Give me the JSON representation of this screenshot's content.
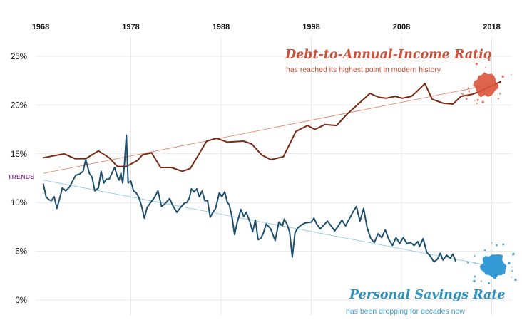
{
  "chart_data": {
    "type": "line",
    "title": "",
    "xlabel": "",
    "ylabel": "",
    "x_ticks": [
      "1968",
      "1978",
      "1988",
      "1998",
      "2008",
      "2018"
    ],
    "y_ticks": [
      "0%",
      "5%",
      "10%",
      "15%",
      "20%",
      "25%"
    ],
    "xlim": [
      1968,
      2021
    ],
    "ylim": [
      0,
      25
    ],
    "grid": true,
    "trends_label": "TRENDS",
    "colors": {
      "debt": "#7a2a14",
      "debt_trend": "#e08a70",
      "savings": "#1d4f6e",
      "savings_trend": "#8ec8e6",
      "debt_splash": "#d9543a",
      "savings_splash": "#1e8fd0",
      "trends_text": "#8a3a8c"
    },
    "series": [
      {
        "name": "Debt-to-Annual-Income Ratio",
        "subtitle": "has reached its highest point in modern history",
        "points": [
          [
            1968.3,
            14.6
          ],
          [
            1970.6,
            15.0
          ],
          [
            1971.8,
            14.5
          ],
          [
            1973.0,
            14.5
          ],
          [
            1974.4,
            15.3
          ],
          [
            1975.6,
            14.6
          ],
          [
            1976.5,
            13.7
          ],
          [
            1977.5,
            13.7
          ],
          [
            1978.7,
            14.3
          ],
          [
            1979.3,
            14.9
          ],
          [
            1980.3,
            15.1
          ],
          [
            1981.3,
            13.6
          ],
          [
            1982.5,
            13.6
          ],
          [
            1983.7,
            13.2
          ],
          [
            1984.6,
            13.5
          ],
          [
            1986.4,
            16.3
          ],
          [
            1987.5,
            16.6
          ],
          [
            1988.7,
            16.2
          ],
          [
            1990.5,
            16.3
          ],
          [
            1991.4,
            16.0
          ],
          [
            1992.5,
            14.9
          ],
          [
            1993.5,
            14.4
          ],
          [
            1994.9,
            14.7
          ],
          [
            1996.3,
            17.3
          ],
          [
            1997.6,
            17.9
          ],
          [
            1998.4,
            17.5
          ],
          [
            1999.5,
            18.0
          ],
          [
            2000.8,
            17.9
          ],
          [
            2002.0,
            19.1
          ],
          [
            2003.8,
            20.6
          ],
          [
            2004.5,
            21.2
          ],
          [
            2005.5,
            20.8
          ],
          [
            2006.3,
            20.7
          ],
          [
            2007.3,
            20.9
          ],
          [
            2008.1,
            20.7
          ],
          [
            2009.1,
            20.9
          ],
          [
            2009.6,
            21.3
          ],
          [
            2010.6,
            22.2
          ],
          [
            2011.4,
            20.6
          ],
          [
            2012.6,
            20.2
          ],
          [
            2013.7,
            20.1
          ],
          [
            2014.6,
            20.9
          ],
          [
            2015.8,
            21.1
          ],
          [
            2016.7,
            21.4
          ],
          [
            2017.8,
            21.9
          ],
          [
            2019.0,
            22.4
          ]
        ],
        "trend": [
          [
            1968.3,
            13.0
          ],
          [
            2019.0,
            22.3
          ]
        ]
      },
      {
        "name": "Personal Savings Rate",
        "subtitle": "has been dropping for decades now",
        "points": [
          [
            1968.3,
            11.9
          ],
          [
            1968.6,
            10.6
          ],
          [
            1968.9,
            10.3
          ],
          [
            1969.2,
            10.2
          ],
          [
            1969.5,
            10.6
          ],
          [
            1969.8,
            9.4
          ],
          [
            1970.1,
            10.4
          ],
          [
            1970.4,
            11.5
          ],
          [
            1970.8,
            11.2
          ],
          [
            1971.2,
            11.6
          ],
          [
            1971.6,
            12.3
          ],
          [
            1971.9,
            12.8
          ],
          [
            1972.3,
            12.9
          ],
          [
            1972.7,
            13.2
          ],
          [
            1973.0,
            14.4
          ],
          [
            1973.4,
            13.0
          ],
          [
            1973.7,
            12.6
          ],
          [
            1974.0,
            11.2
          ],
          [
            1974.4,
            11.5
          ],
          [
            1974.7,
            13.2
          ],
          [
            1975.0,
            12.0
          ],
          [
            1975.3,
            12.4
          ],
          [
            1975.6,
            12.4
          ],
          [
            1975.9,
            13.0
          ],
          [
            1976.2,
            13.6
          ],
          [
            1976.5,
            12.7
          ],
          [
            1976.7,
            12.3
          ],
          [
            1976.9,
            13.0
          ],
          [
            1977.1,
            12.0
          ],
          [
            1977.3,
            14.0
          ],
          [
            1977.5,
            16.9
          ],
          [
            1977.7,
            12.0
          ],
          [
            1978.0,
            12.2
          ],
          [
            1978.3,
            11.2
          ],
          [
            1978.6,
            11.0
          ],
          [
            1978.9,
            10.5
          ],
          [
            1979.2,
            9.6
          ],
          [
            1979.5,
            8.4
          ],
          [
            1979.8,
            9.5
          ],
          [
            1980.2,
            10.0
          ],
          [
            1980.6,
            10.5
          ],
          [
            1981.0,
            11.2
          ],
          [
            1981.4,
            9.6
          ],
          [
            1981.8,
            9.9
          ],
          [
            1982.3,
            10.4
          ],
          [
            1982.7,
            9.6
          ],
          [
            1983.1,
            9.0
          ],
          [
            1983.6,
            9.6
          ],
          [
            1984.0,
            10.0
          ],
          [
            1984.2,
            10.0
          ],
          [
            1984.5,
            10.5
          ],
          [
            1984.7,
            11.4
          ],
          [
            1985.0,
            11.1
          ],
          [
            1985.3,
            11.4
          ],
          [
            1985.6,
            10.6
          ],
          [
            1985.9,
            11.2
          ],
          [
            1986.2,
            10.2
          ],
          [
            1986.5,
            10.2
          ],
          [
            1986.8,
            8.5
          ],
          [
            1987.1,
            9.0
          ],
          [
            1987.4,
            9.4
          ],
          [
            1987.8,
            11.0
          ],
          [
            1988.1,
            10.6
          ],
          [
            1988.4,
            11.1
          ],
          [
            1988.7,
            10.0
          ],
          [
            1988.9,
            9.8
          ],
          [
            1989.2,
            8.6
          ],
          [
            1989.5,
            6.7
          ],
          [
            1989.8,
            8.0
          ],
          [
            1990.2,
            9.3
          ],
          [
            1990.5,
            8.6
          ],
          [
            1990.8,
            9.0
          ],
          [
            1991.2,
            8.0
          ],
          [
            1991.5,
            7.0
          ],
          [
            1991.8,
            8.2
          ],
          [
            1992.1,
            6.2
          ],
          [
            1992.4,
            6.3
          ],
          [
            1992.7,
            6.9
          ],
          [
            1993.0,
            7.8
          ],
          [
            1993.5,
            7.3
          ],
          [
            1994.0,
            6.1
          ],
          [
            1994.4,
            8.0
          ],
          [
            1994.8,
            7.6
          ],
          [
            1995.0,
            8.3
          ],
          [
            1995.3,
            7.8
          ],
          [
            1995.6,
            7.0
          ],
          [
            1995.9,
            4.4
          ],
          [
            1996.2,
            6.9
          ],
          [
            1996.5,
            7.4
          ],
          [
            1996.9,
            7.7
          ],
          [
            1997.3,
            7.9
          ],
          [
            1998.0,
            8.0
          ],
          [
            1998.3,
            8.4
          ],
          [
            1998.6,
            7.8
          ],
          [
            1999.0,
            7.3
          ],
          [
            1999.4,
            7.7
          ],
          [
            1999.8,
            8.1
          ],
          [
            2000.2,
            7.6
          ],
          [
            2000.6,
            7.1
          ],
          [
            2001.0,
            7.6
          ],
          [
            2001.4,
            8.2
          ],
          [
            2001.8,
            7.6
          ],
          [
            2002.2,
            8.3
          ],
          [
            2002.6,
            9.0
          ],
          [
            2003.0,
            9.6
          ],
          [
            2003.4,
            8.1
          ],
          [
            2003.8,
            9.4
          ],
          [
            2004.2,
            7.4
          ],
          [
            2004.6,
            6.3
          ],
          [
            2005.0,
            5.9
          ],
          [
            2005.4,
            6.8
          ],
          [
            2005.8,
            6.4
          ],
          [
            2006.2,
            7.2
          ],
          [
            2006.6,
            6.2
          ],
          [
            2007.0,
            5.6
          ],
          [
            2007.4,
            6.4
          ],
          [
            2007.8,
            5.8
          ],
          [
            2008.2,
            6.4
          ],
          [
            2008.6,
            5.8
          ],
          [
            2009.0,
            5.9
          ],
          [
            2009.4,
            5.6
          ],
          [
            2009.8,
            6.0
          ],
          [
            2010.0,
            5.5
          ],
          [
            2010.4,
            6.3
          ],
          [
            2010.8,
            4.9
          ],
          [
            2011.2,
            4.5
          ],
          [
            2011.6,
            3.9
          ],
          [
            2012.0,
            4.2
          ],
          [
            2012.3,
            4.8
          ],
          [
            2012.6,
            4.1
          ],
          [
            2013.0,
            4.6
          ],
          [
            2013.4,
            4.3
          ],
          [
            2013.7,
            4.7
          ],
          [
            2014.0,
            4.0
          ]
        ],
        "trend": [
          [
            1968.3,
            12.3
          ],
          [
            2019.0,
            3.3
          ]
        ]
      }
    ]
  }
}
